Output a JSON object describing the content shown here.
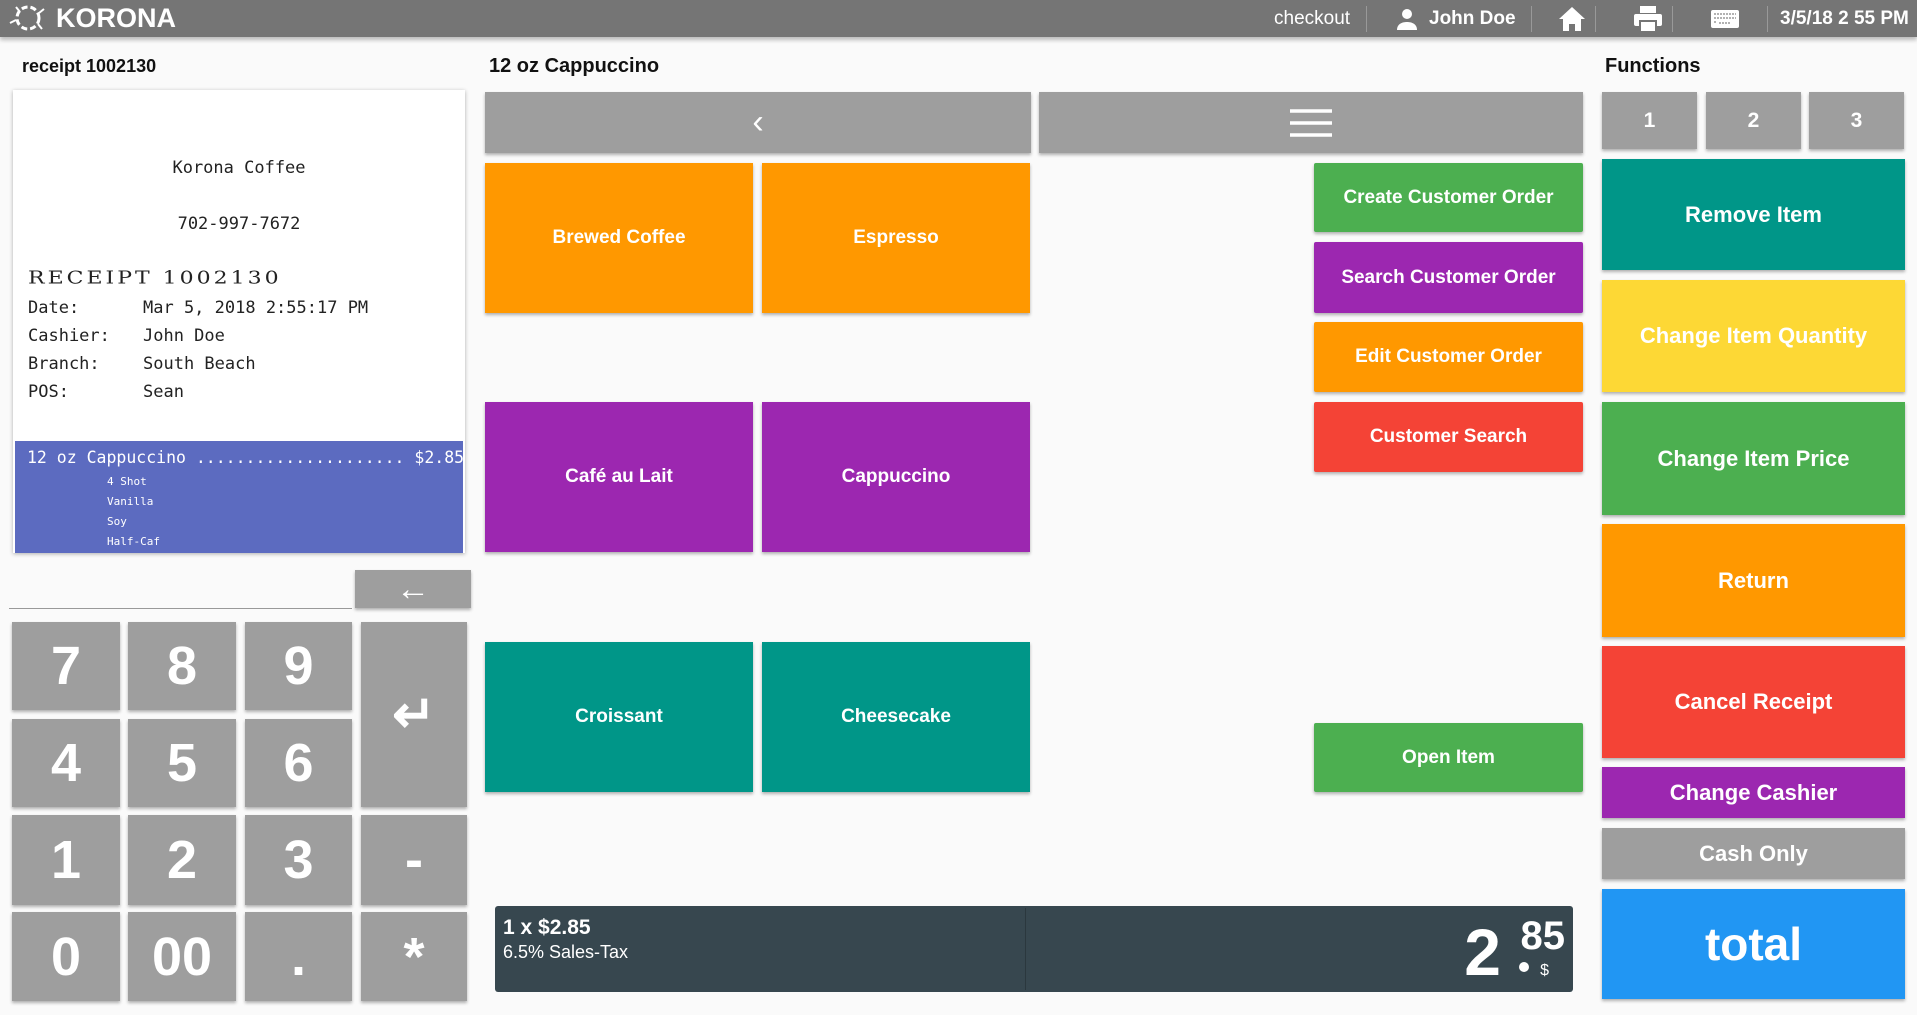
{
  "topbar": {
    "brand": "KORONA",
    "mode": "checkout",
    "user": "John Doe",
    "datetime": "3/5/18 2 55 PM"
  },
  "receipt": {
    "label": "receipt 1002130",
    "store": "Korona Coffee",
    "phone": "702-997-7672",
    "heading": "RECEIPT 1002130",
    "fields": [
      {
        "label": "Date:",
        "value": "Mar 5, 2018 2:55:17 PM"
      },
      {
        "label": "Cashier:",
        "value": "John Doe"
      },
      {
        "label": "Branch:",
        "value": "South Beach"
      },
      {
        "label": "POS:",
        "value": "Sean"
      }
    ],
    "item": {
      "line": "12 oz Cappuccino ..................... $2.85",
      "modifiers": [
        "4 Shot",
        "Vanilla",
        "Soy",
        "Half-Caf"
      ]
    },
    "highlight_color": "#5c6bc0"
  },
  "keypad": {
    "keys": [
      "7",
      "8",
      "9",
      "4",
      "5",
      "6",
      "1",
      "2",
      "3",
      "-",
      "0",
      "00",
      ".",
      "*"
    ],
    "backspace": "←",
    "enter": "↵"
  },
  "products": {
    "title": "12 oz Cappuccino",
    "back": "‹",
    "menu": "☰",
    "items": [
      {
        "label": "Brewed Coffee",
        "color": "#ff9800"
      },
      {
        "label": "Espresso",
        "color": "#ff9800"
      },
      {
        "label": "Café au Lait",
        "color": "#9c27b0"
      },
      {
        "label": "Cappuccino",
        "color": "#9c27b0"
      },
      {
        "label": "Croissant",
        "color": "#009688"
      },
      {
        "label": "Cheesecake",
        "color": "#009688"
      }
    ]
  },
  "customer": [
    {
      "label": "Create Customer Order",
      "color": "#4caf50"
    },
    {
      "label": "Search Customer Order",
      "color": "#9c27b0"
    },
    {
      "label": "Edit Customer Order",
      "color": "#ff9800"
    },
    {
      "label": "Customer Search",
      "color": "#f44336"
    },
    {
      "label": "Open Item",
      "color": "#4caf50"
    }
  ],
  "summary": {
    "qty_price": "1 x $2.85",
    "tax": "6.5% Sales-Tax",
    "total_int": "2",
    "total_cents": "85",
    "currency": "$"
  },
  "functions": {
    "title": "Functions",
    "pages": [
      "1",
      "2",
      "3"
    ],
    "buttons": [
      {
        "label": "Remove Item",
        "color": "#009688"
      },
      {
        "label": "Change Item Quantity",
        "color": "#fdd835"
      },
      {
        "label": "Change Item Price",
        "color": "#4caf50"
      },
      {
        "label": "Return",
        "color": "#ff9800"
      },
      {
        "label": "Cancel Receipt",
        "color": "#f44336"
      },
      {
        "label": "Change Cashier",
        "color": "#9c27b0"
      },
      {
        "label": "Cash Only",
        "color": "#9e9e9e"
      }
    ],
    "total": {
      "label": "total",
      "color": "#2196f3"
    }
  }
}
